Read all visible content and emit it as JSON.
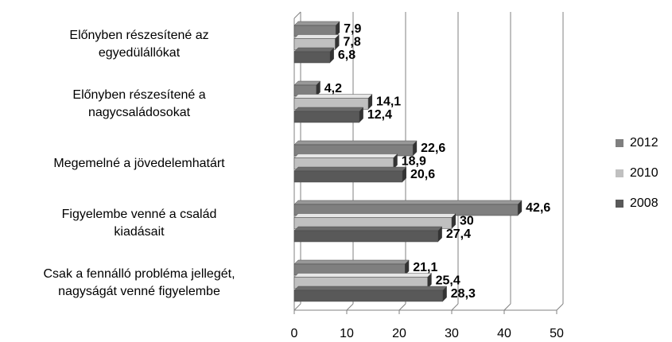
{
  "chart_data": {
    "type": "bar",
    "orientation": "horizontal",
    "categories": [
      "Előnyben részesítené  az\negyedülállókat",
      "Előnyben részesítené  a\nnagycsaládosokat",
      "Megemelné a jövedelemhatárt",
      "Figyelembe venné a család\nkiadásait",
      "Csak a fennálló probléma jellegét,\nnagyságát venné figyelembe"
    ],
    "series": [
      {
        "name": "2012",
        "color": "#7f7f7f",
        "values": [
          7.9,
          4.2,
          22.6,
          42.6,
          21.1
        ],
        "value_labels": [
          "7,9",
          "4,2",
          "22,6",
          "42,6",
          "21,1"
        ]
      },
      {
        "name": "2010",
        "color": "#c0c0c0",
        "values": [
          7.8,
          14.1,
          18.9,
          30,
          25.4
        ],
        "value_labels": [
          "7,8",
          "14,1",
          "18,9",
          "30",
          "25,4"
        ]
      },
      {
        "name": "2008",
        "color": "#595959",
        "values": [
          6.8,
          12.4,
          20.6,
          27.4,
          28.3
        ],
        "value_labels": [
          "6,8",
          "12,4",
          "20,6",
          "27,4",
          "28,3"
        ]
      }
    ],
    "xlim": [
      0,
      50
    ],
    "xticks": [
      0,
      10,
      20,
      30,
      40,
      50
    ],
    "grid": true,
    "legend": "right"
  }
}
